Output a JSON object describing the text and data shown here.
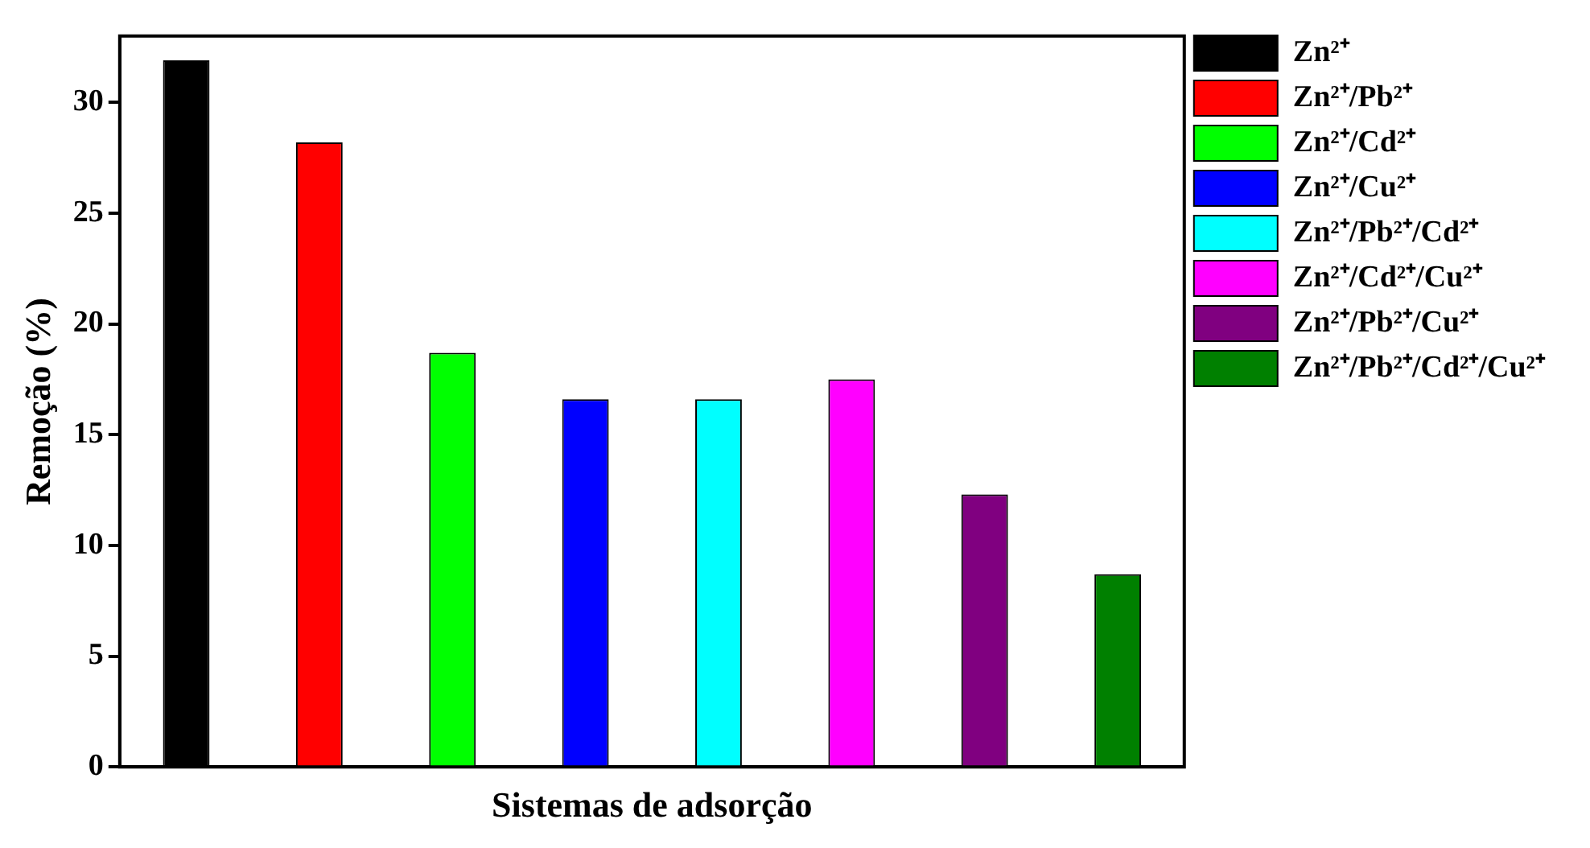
{
  "chart_data": {
    "type": "bar",
    "xlabel": "Sistemas de adsorção",
    "ylabel": "Remoção (%)",
    "categories": [
      null,
      null,
      null,
      null,
      null,
      null,
      null,
      null
    ],
    "ylim": [
      0,
      33
    ],
    "yticks": [
      0,
      5,
      10,
      15,
      20,
      25,
      30
    ],
    "legend": "top right",
    "series": [
      {
        "name": "Zn²⁺",
        "color": "#000000",
        "values": [
          31.9,
          null,
          null,
          null,
          null,
          null,
          null,
          null
        ]
      },
      {
        "name": "Zn²⁺/Pb²⁺",
        "color": "#ff0000",
        "values": [
          null,
          28.2,
          null,
          null,
          null,
          null,
          null,
          null
        ]
      },
      {
        "name": "Zn²⁺/Cd²⁺",
        "color": "#00ff00",
        "values": [
          null,
          null,
          18.7,
          null,
          null,
          null,
          null,
          null
        ]
      },
      {
        "name": "Zn²⁺/Cu²⁺",
        "color": "#0000ff",
        "values": [
          null,
          null,
          null,
          16.6,
          null,
          null,
          null,
          null
        ]
      },
      {
        "name": "Zn²⁺/Pb²⁺/Cd²⁺",
        "color": "#00ffff",
        "values": [
          null,
          null,
          null,
          null,
          16.6,
          null,
          null,
          null
        ]
      },
      {
        "name": "Zn²⁺/Cd²⁺/Cu²⁺",
        "color": "#ff00ff",
        "values": [
          null,
          null,
          null,
          null,
          null,
          17.5,
          null,
          null
        ]
      },
      {
        "name": "Zn²⁺/Pb²⁺/Cu²⁺",
        "color": "#800080",
        "values": [
          null,
          null,
          null,
          null,
          null,
          null,
          12.3,
          null
        ]
      },
      {
        "name": "Zn²⁺/Pb²⁺/Cd²⁺/Cu²⁺",
        "color": "#008000",
        "values": [
          null,
          null,
          null,
          null,
          null,
          null,
          null,
          8.7
        ]
      }
    ]
  }
}
